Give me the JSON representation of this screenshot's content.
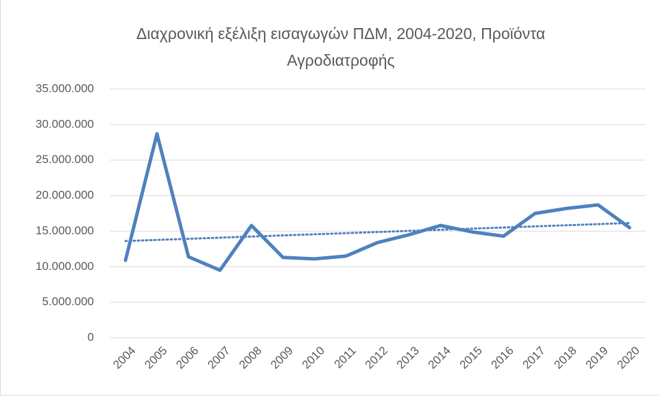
{
  "chart_data": {
    "type": "line",
    "title": "Διαχρονική εξέλιξη εισαγωγών ΠΔΜ, 2004-2020, Προϊόντα Αγροδιατροφής",
    "categories": [
      "2004",
      "2005",
      "2006",
      "2007",
      "2008",
      "2009",
      "2010",
      "2011",
      "2012",
      "2013",
      "2014",
      "2015",
      "2016",
      "2017",
      "2018",
      "2019",
      "2020"
    ],
    "values": [
      10900000,
      28700000,
      11400000,
      9500000,
      15800000,
      11300000,
      11100000,
      11500000,
      13400000,
      14500000,
      15800000,
      14900000,
      14300000,
      17500000,
      18200000,
      18700000,
      15500000
    ],
    "color": "#4f81bd",
    "trendline": true,
    "ylim": [
      0,
      35000000
    ],
    "yticks": [
      0,
      {
        "value": 5000000,
        "label": "5.000.000"
      },
      {
        "value": 10000000,
        "label": "10.000.000"
      },
      {
        "value": 15000000,
        "label": "15.000.000"
      },
      {
        "value": 20000000,
        "label": "20.000.000"
      },
      {
        "value": 25000000,
        "label": "25.000.000"
      },
      {
        "value": 30000000,
        "label": "30.000.000"
      },
      {
        "value": 35000000,
        "label": "35.000.000"
      }
    ],
    "grid": true
  }
}
